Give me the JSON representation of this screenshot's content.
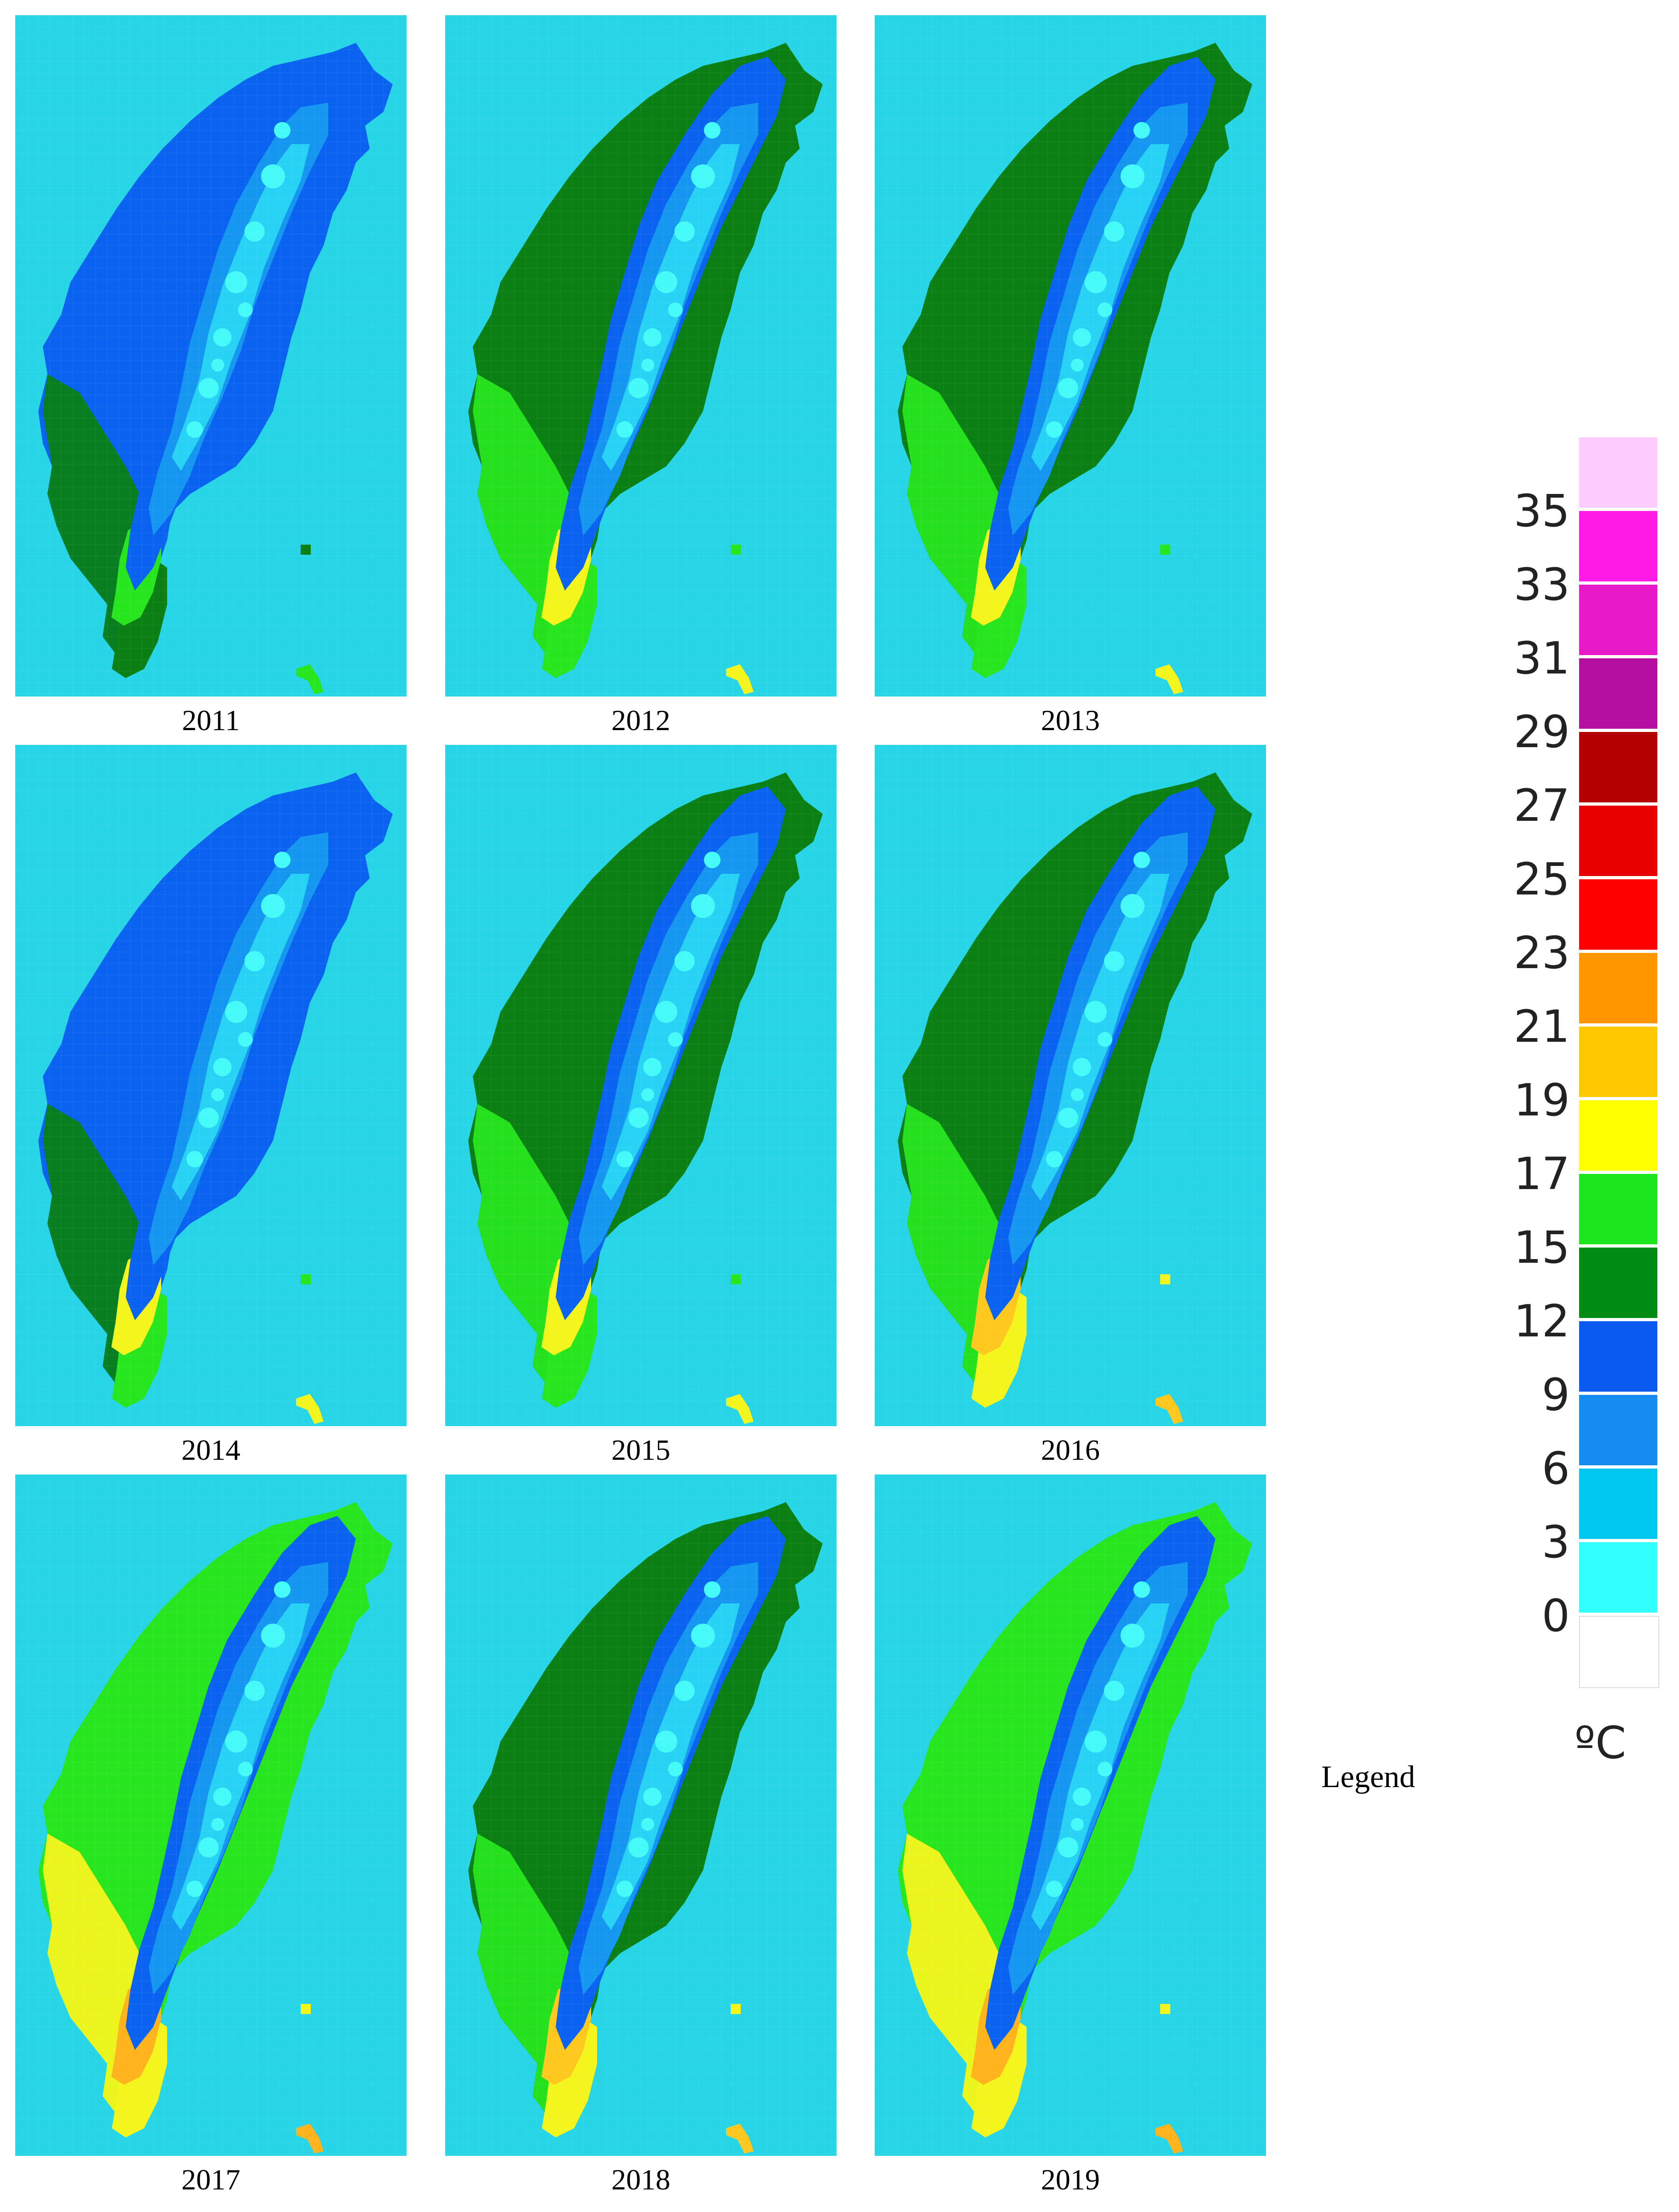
{
  "panels": [
    {
      "year": "2011",
      "land": "#0a63f0",
      "south": "#0a7f14",
      "tip": "#27e61e",
      "tipEdge": "#0a7f14"
    },
    {
      "year": "2012",
      "land": "#0a7f14",
      "south": "#27e61e",
      "tip": "#f5f51e",
      "tipEdge": "#27e61e"
    },
    {
      "year": "2013",
      "land": "#0a7f14",
      "south": "#27e61e",
      "tip": "#f5f51e",
      "tipEdge": "#27e61e"
    },
    {
      "year": "2014",
      "land": "#0a63f0",
      "south": "#0a7f14",
      "tip": "#f5f51e",
      "tipEdge": "#27e61e"
    },
    {
      "year": "2015",
      "land": "#0a7f14",
      "south": "#27e61e",
      "tip": "#f5f51e",
      "tipEdge": "#27e61e"
    },
    {
      "year": "2016",
      "land": "#0a7f14",
      "south": "#27e61e",
      "tip": "#ffc81e",
      "tipEdge": "#f5f51e"
    },
    {
      "year": "2017",
      "land": "#27e61e",
      "south": "#f5f51e",
      "tip": "#ffb41e",
      "tipEdge": "#f5f51e"
    },
    {
      "year": "2018",
      "land": "#0a7f14",
      "south": "#27e61e",
      "tip": "#ffc81e",
      "tipEdge": "#f5f51e"
    },
    {
      "year": "2019",
      "land": "#27e61e",
      "south": "#f5f51e",
      "tip": "#ffb41e",
      "tipEdge": "#f5f51e"
    }
  ],
  "legend": {
    "unit": "ºC",
    "caption": "Legend",
    "ticks": [
      "35",
      "33",
      "31",
      "29",
      "27",
      "25",
      "23",
      "21",
      "19",
      "17",
      "15",
      "12",
      "9",
      "6",
      "3",
      "0"
    ],
    "colors": [
      "#ffccff",
      "#ff1ae6",
      "#e61ac8",
      "#b40fa0",
      "#b40000",
      "#e60000",
      "#ff0000",
      "#ff9600",
      "#ffc800",
      "#ffff00",
      "#1ee61e",
      "#008c14",
      "#0a5af0",
      "#148cf0",
      "#00c8f0",
      "#32ffff",
      "#ffffff"
    ]
  }
}
